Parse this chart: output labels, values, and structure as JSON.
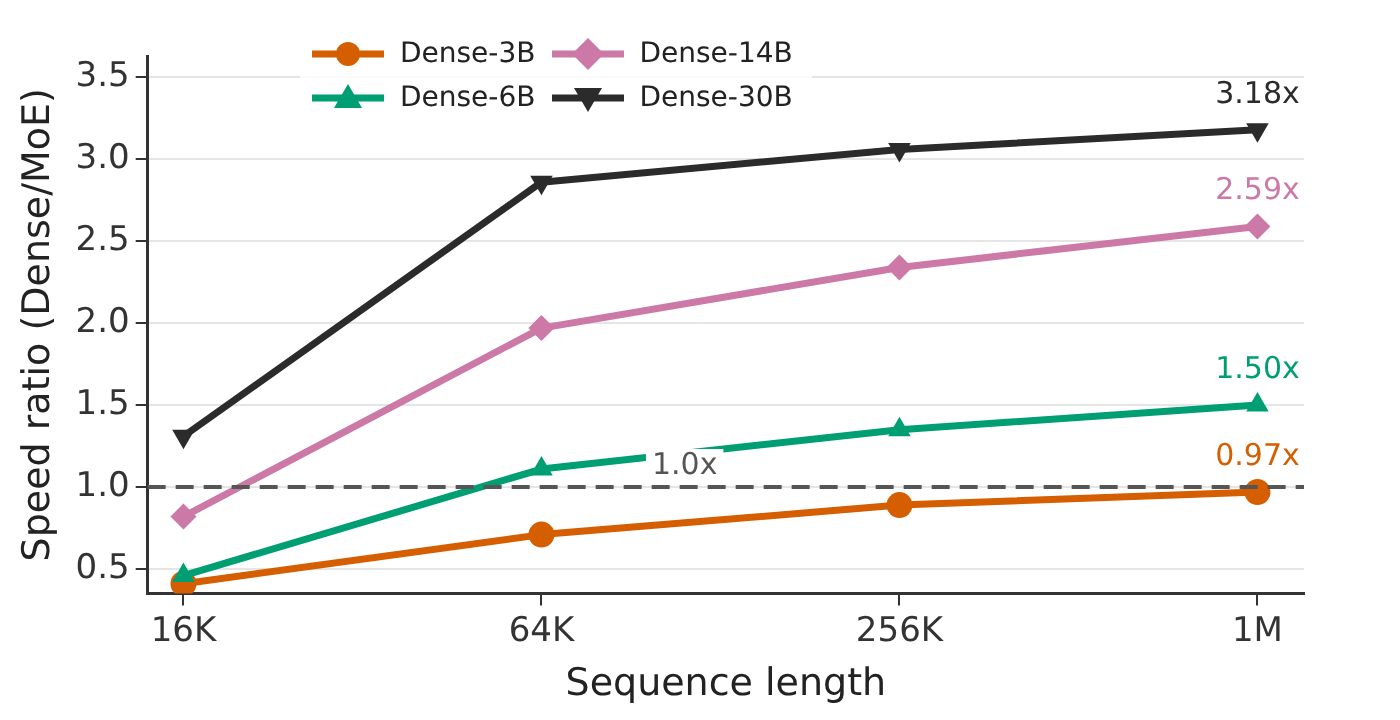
{
  "chart_data": {
    "type": "line",
    "xlabel": "Sequence length",
    "ylabel": "Speed ratio (Dense/MoE)",
    "categories": [
      "16K",
      "64K",
      "256K",
      "1M"
    ],
    "series": [
      {
        "name": "Dense-3B",
        "color": "#d55e00",
        "marker": "circle",
        "values": [
          0.41,
          0.71,
          0.89,
          0.97
        ],
        "value_labels": [
          null,
          null,
          null,
          "0.97x"
        ]
      },
      {
        "name": "Dense-6B",
        "color": "#009e73",
        "marker": "triangle",
        "values": [
          0.46,
          1.11,
          1.35,
          1.5
        ],
        "value_labels": [
          null,
          null,
          null,
          "1.50x"
        ]
      },
      {
        "name": "Dense-14B",
        "color": "#cc79a7",
        "marker": "diamond",
        "values": [
          0.82,
          1.97,
          2.34,
          2.59
        ],
        "value_labels": [
          null,
          null,
          null,
          "2.59x"
        ]
      },
      {
        "name": "Dense-30B",
        "color": "#2b2b2b",
        "marker": "triangle-down",
        "values": [
          1.31,
          2.86,
          3.06,
          3.18
        ],
        "value_labels": [
          null,
          null,
          null,
          "3.18x"
        ]
      }
    ],
    "ylim": [
      0.35,
      3.63
    ],
    "yticks": [
      {
        "value": 0.5,
        "label": "0.5"
      },
      {
        "value": 1,
        "label": "1.0"
      },
      {
        "value": 1.5,
        "label": "1.5"
      },
      {
        "value": 2,
        "label": "2.0"
      },
      {
        "value": 2.5,
        "label": "2.5"
      },
      {
        "value": 3,
        "label": "3.0"
      },
      {
        "value": 3.5,
        "label": "3.5"
      }
    ],
    "ref_lines": [
      {
        "axis": "y",
        "value": 1,
        "label": "1.0x",
        "color": "#555555",
        "line_style": "dashed"
      }
    ],
    "grid": "y",
    "legend": "top left",
    "line_style": "solid"
  }
}
